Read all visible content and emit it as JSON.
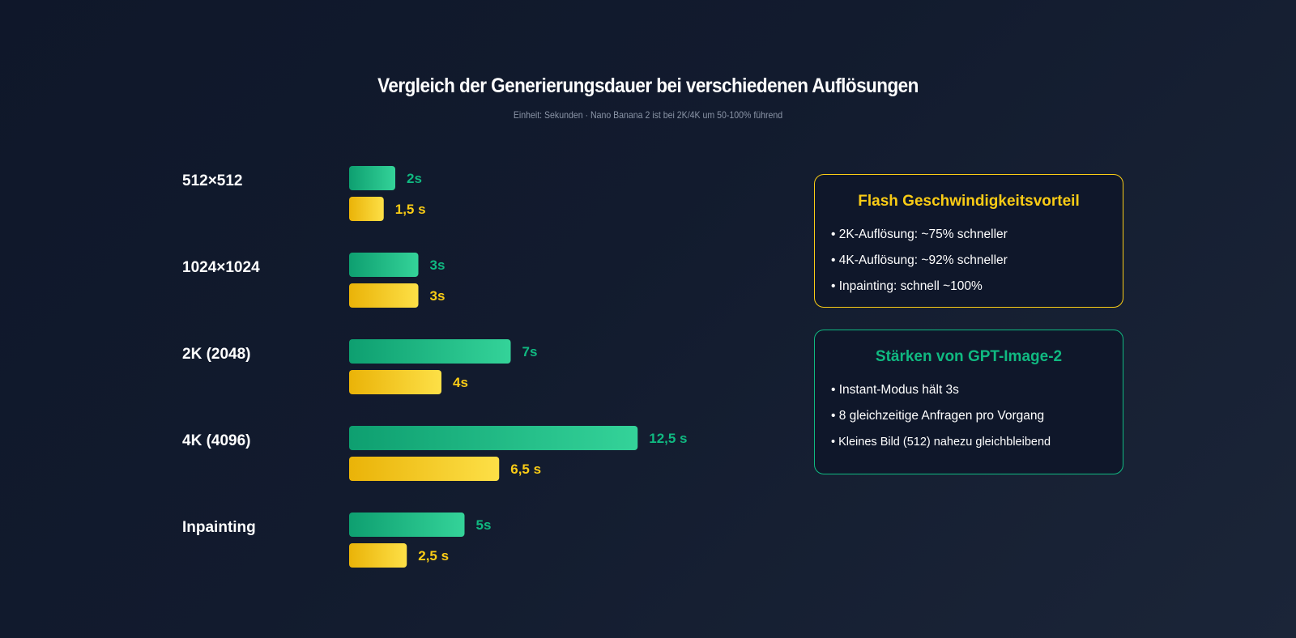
{
  "header": {
    "title": "Vergleich der Generierungsdauer bei verschiedenen Auflösungen",
    "subtitle": "Einheit: Sekunden · Nano Banana 2 ist bei 2K/4K um 50-100% führend"
  },
  "chart_data": {
    "type": "bar",
    "orientation": "horizontal",
    "title": "Vergleich der Generierungsdauer bei verschiedenen Auflösungen",
    "subtitle": "Einheit: Sekunden · Nano Banana 2 ist bei 2K/4K um 50-100% führend",
    "categories": [
      "512×512",
      "1024×1024",
      "2K (2048)",
      "4K (4096)",
      "Inpainting"
    ],
    "series": [
      {
        "values": [
          2,
          3,
          7,
          12.5,
          5
        ],
        "labels": [
          "2s",
          "3s",
          "7s",
          "12,5 s",
          "5s"
        ],
        "color": "#10b981"
      },
      {
        "values": [
          1.5,
          3,
          4,
          6.5,
          2.5
        ],
        "labels": [
          "1,5 s",
          "3s",
          "4s",
          "6,5 s",
          "2,5 s"
        ],
        "color": "#facc15"
      }
    ],
    "xlim": [
      0,
      15
    ],
    "grid": false,
    "legend": "none"
  },
  "cards": {
    "flash": {
      "title": "Flash Geschwindigkeitsvorteil",
      "items": [
        "• 2K-Auflösung: ~75% schneller",
        "• 4K-Auflösung: ~92% schneller",
        "• Inpainting: schnell ~100%"
      ],
      "accent": "#facc15"
    },
    "gpt": {
      "title": "Stärken von GPT-Image-2",
      "items": [
        "• Instant-Modus hält 3s",
        "• 8 gleichzeitige Anfragen pro Vorgang",
        "• Kleines Bild (512) nahezu gleichbleibend"
      ],
      "accent": "#10b981"
    }
  }
}
